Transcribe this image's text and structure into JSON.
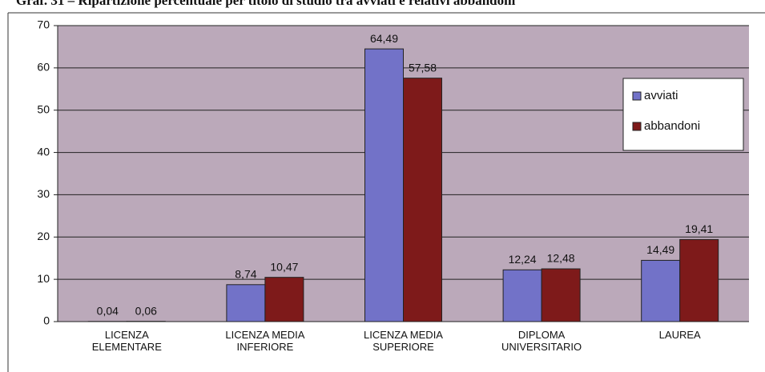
{
  "chart_data": {
    "type": "bar",
    "title": "Graf. 31 – Ripartizione percentuale per titolo di studio tra avviati e relativi abbandoni",
    "categories": [
      "LICENZA\nELEMENTARE",
      "LICENZA MEDIA\nINFERIORE",
      "LICENZA MEDIA\nSUPERIORE",
      "DIPLOMA\nUNIVERSITARIO",
      "LAUREA"
    ],
    "series": [
      {
        "name": "avviati",
        "color": "#7272c8",
        "values": [
          0.04,
          8.74,
          64.49,
          12.24,
          14.49
        ],
        "value_labels": [
          "0,04",
          "8,74",
          "64,49",
          "12,24",
          "14,49"
        ]
      },
      {
        "name": "abbandoni",
        "color": "#7e1a1a",
        "values": [
          0.06,
          10.47,
          57.58,
          12.48,
          19.41
        ],
        "value_labels": [
          "0,06",
          "10,47",
          "57,58",
          "12,48",
          "19,41"
        ]
      }
    ],
    "ylim": [
      0,
      70
    ],
    "yticks": [
      0,
      10,
      20,
      30,
      40,
      50,
      60,
      70
    ],
    "grid": true,
    "legend": "right"
  }
}
